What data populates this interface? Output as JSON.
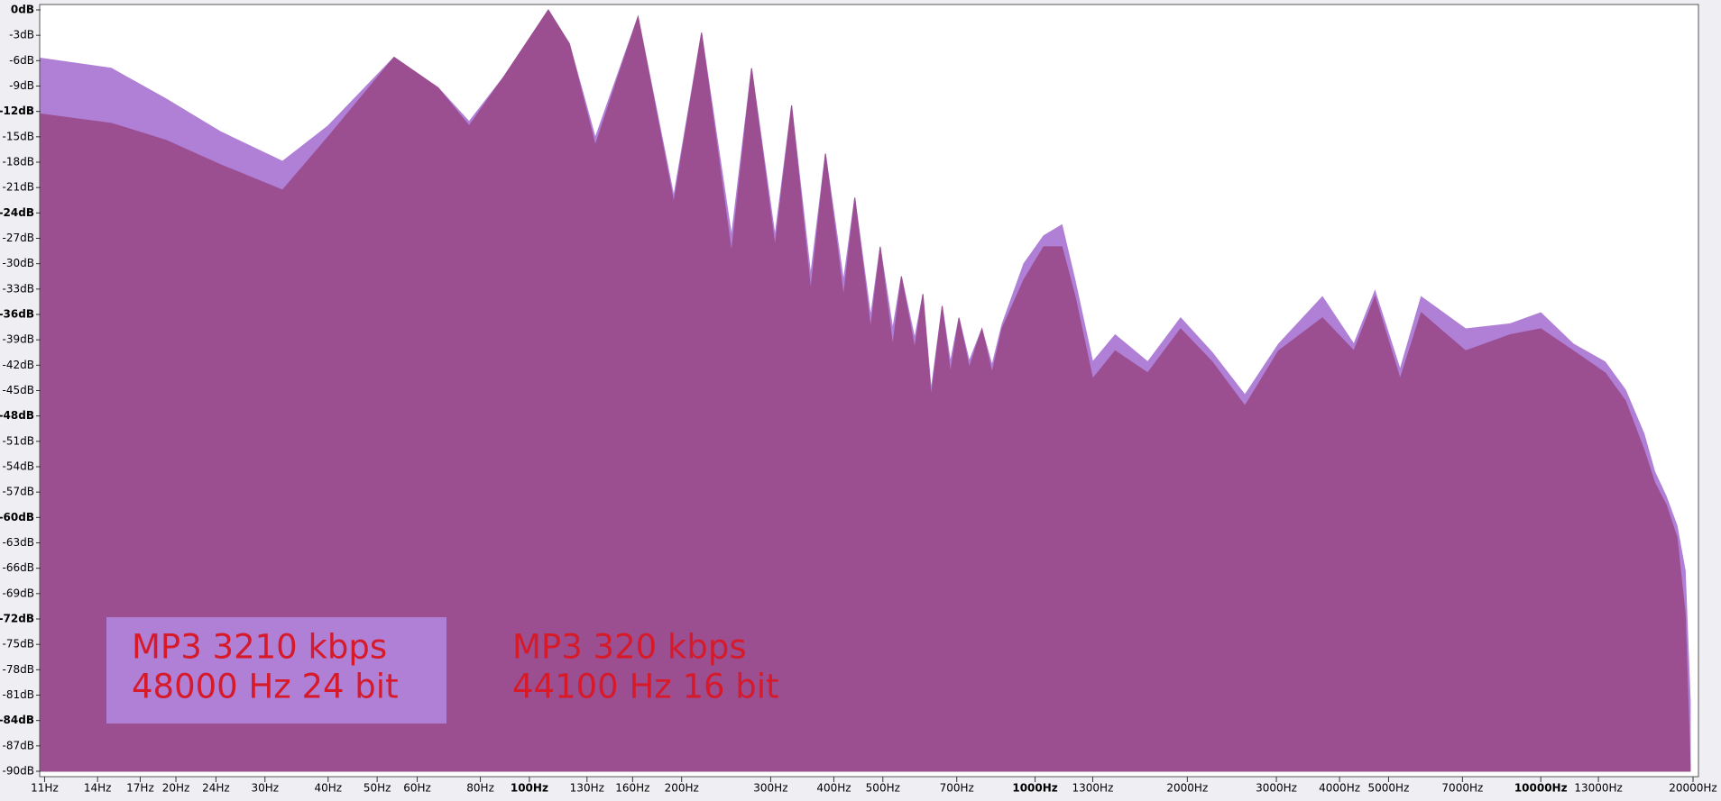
{
  "chart_data": {
    "type": "area",
    "xscale": "log",
    "grid": false,
    "x": [
      10.8,
      14.9,
      19.1,
      24.5,
      32.5,
      40,
      54,
      66,
      76,
      89,
      109,
      120,
      135,
      164,
      193,
      219,
      251,
      275,
      306,
      330,
      360,
      385,
      418,
      440,
      473,
      494,
      523,
      544,
      578,
      600,
      623,
      655,
      680,
      707,
      741,
      785,
      822,
      860,
      950,
      1040,
      1130,
      1200,
      1300,
      1440,
      1670,
      1940,
      2240,
      2600,
      3030,
      3700,
      4270,
      4700,
      5270,
      5800,
      7100,
      8700,
      10000,
      11600,
      13400,
      14700,
      16000,
      16800,
      17700,
      18600,
      19300,
      19750
    ],
    "series": [
      {
        "name": "MP3 3210 kbps",
        "format": "48000 Hz 24 bit",
        "color": "#b07fd6",
        "values": [
          -5.7,
          -6.9,
          -10.5,
          -14.4,
          -17.9,
          -13.7,
          -5.6,
          -9.2,
          -13.2,
          -7.9,
          0,
          -4,
          -15.1,
          -0.8,
          -22,
          -2.7,
          -26.7,
          -6.9,
          -26.7,
          -11.3,
          -31.3,
          -17,
          -32,
          -22.2,
          -36.2,
          -28,
          -37.7,
          -31.5,
          -38.8,
          -33.6,
          -44.9,
          -35,
          -41.6,
          -36.4,
          -41.5,
          -37.7,
          -42,
          -37.2,
          -30,
          -26.7,
          -25.4,
          -32,
          -41.6,
          -38.4,
          -41.6,
          -36.4,
          -40.5,
          -45.5,
          -39.5,
          -33.9,
          -39.5,
          -33.2,
          -42.5,
          -33.9,
          -37.7,
          -37.1,
          -35.8,
          -39.5,
          -41.6,
          -44.9,
          -50.1,
          -54.6,
          -57.5,
          -61,
          -66.3,
          -81.8
        ]
      },
      {
        "name": "MP3 320 kbps",
        "format": "44100 Hz 16 bit",
        "color": "#9b4f91",
        "values": [
          -12.3,
          -13.4,
          -15.4,
          -18.3,
          -21.3,
          -15,
          -5.6,
          -9.2,
          -13.7,
          -7.9,
          0,
          -4,
          -16,
          -0.8,
          -22.8,
          -2.7,
          -28.7,
          -6.9,
          -28,
          -11.3,
          -33.2,
          -17,
          -33.9,
          -22.2,
          -37.7,
          -28,
          -39.7,
          -31.5,
          -40,
          -33.6,
          -45.8,
          -35,
          -42.9,
          -36.4,
          -42.3,
          -37.7,
          -42.9,
          -37.7,
          -31.9,
          -28,
          -28,
          -33.9,
          -43.6,
          -40.3,
          -42.9,
          -37.7,
          -41.6,
          -46.8,
          -40.3,
          -36.4,
          -40.3,
          -33.9,
          -43.6,
          -35.8,
          -40.3,
          -38.4,
          -37.7,
          -40.3,
          -42.9,
          -46.2,
          -52,
          -55.9,
          -58.5,
          -62.4,
          -71.4,
          -89.6
        ]
      }
    ],
    "legend_text_color": "#d61a2a",
    "xlim": [
      10.8,
      20500
    ],
    "ylim": [
      -90,
      0
    ],
    "xticks": [
      {
        "value": 11,
        "label": "11Hz"
      },
      {
        "value": 14,
        "label": "14Hz"
      },
      {
        "value": 17,
        "label": "17Hz"
      },
      {
        "value": 20,
        "label": "20Hz"
      },
      {
        "value": 24,
        "label": "24Hz"
      },
      {
        "value": 30,
        "label": "30Hz"
      },
      {
        "value": 40,
        "label": "40Hz"
      },
      {
        "value": 50,
        "label": "50Hz"
      },
      {
        "value": 60,
        "label": "60Hz"
      },
      {
        "value": 80,
        "label": "80Hz"
      },
      {
        "value": 100,
        "label": "100Hz"
      },
      {
        "value": 130,
        "label": "130Hz"
      },
      {
        "value": 160,
        "label": "160Hz"
      },
      {
        "value": 200,
        "label": "200Hz"
      },
      {
        "value": 300,
        "label": "300Hz"
      },
      {
        "value": 400,
        "label": "400Hz"
      },
      {
        "value": 500,
        "label": "500Hz"
      },
      {
        "value": 700,
        "label": "700Hz"
      },
      {
        "value": 1000,
        "label": "1000Hz"
      },
      {
        "value": 1300,
        "label": "1300Hz"
      },
      {
        "value": 2000,
        "label": "2000Hz"
      },
      {
        "value": 3000,
        "label": "3000Hz"
      },
      {
        "value": 4000,
        "label": "4000Hz"
      },
      {
        "value": 5000,
        "label": "5000Hz"
      },
      {
        "value": 7000,
        "label": "7000Hz"
      },
      {
        "value": 10000,
        "label": "10000Hz"
      },
      {
        "value": 13000,
        "label": "13000Hz"
      },
      {
        "value": 20000,
        "label": "20000Hz"
      }
    ],
    "yticks": [
      {
        "value": 0,
        "label": "0dB"
      },
      {
        "value": -3,
        "label": "-3dB"
      },
      {
        "value": -6,
        "label": "-6dB"
      },
      {
        "value": -9,
        "label": "-9dB"
      },
      {
        "value": -12,
        "label": "-12dB"
      },
      {
        "value": -15,
        "label": "-15dB"
      },
      {
        "value": -18,
        "label": "-18dB"
      },
      {
        "value": -21,
        "label": "-21dB"
      },
      {
        "value": -24,
        "label": "-24dB"
      },
      {
        "value": -27,
        "label": "-27dB"
      },
      {
        "value": -30,
        "label": "-30dB"
      },
      {
        "value": -33,
        "label": "-33dB"
      },
      {
        "value": -36,
        "label": "-36dB"
      },
      {
        "value": -39,
        "label": "-39dB"
      },
      {
        "value": -42,
        "label": "-42dB"
      },
      {
        "value": -45,
        "label": "-45dB"
      },
      {
        "value": -48,
        "label": "-48dB"
      },
      {
        "value": -51,
        "label": "-51dB"
      },
      {
        "value": -54,
        "label": "-54dB"
      },
      {
        "value": -57,
        "label": "-57dB"
      },
      {
        "value": -60,
        "label": "-60dB"
      },
      {
        "value": -63,
        "label": "-63dB"
      },
      {
        "value": -66,
        "label": "-66dB"
      },
      {
        "value": -69,
        "label": "-69dB"
      },
      {
        "value": -72,
        "label": "-72dB"
      },
      {
        "value": -75,
        "label": "-75dB"
      },
      {
        "value": -78,
        "label": "-78dB"
      },
      {
        "value": -81,
        "label": "-81dB"
      },
      {
        "value": -84,
        "label": "-84dB"
      },
      {
        "value": -87,
        "label": "-87dB"
      },
      {
        "value": -90,
        "label": "-90dB"
      }
    ]
  }
}
